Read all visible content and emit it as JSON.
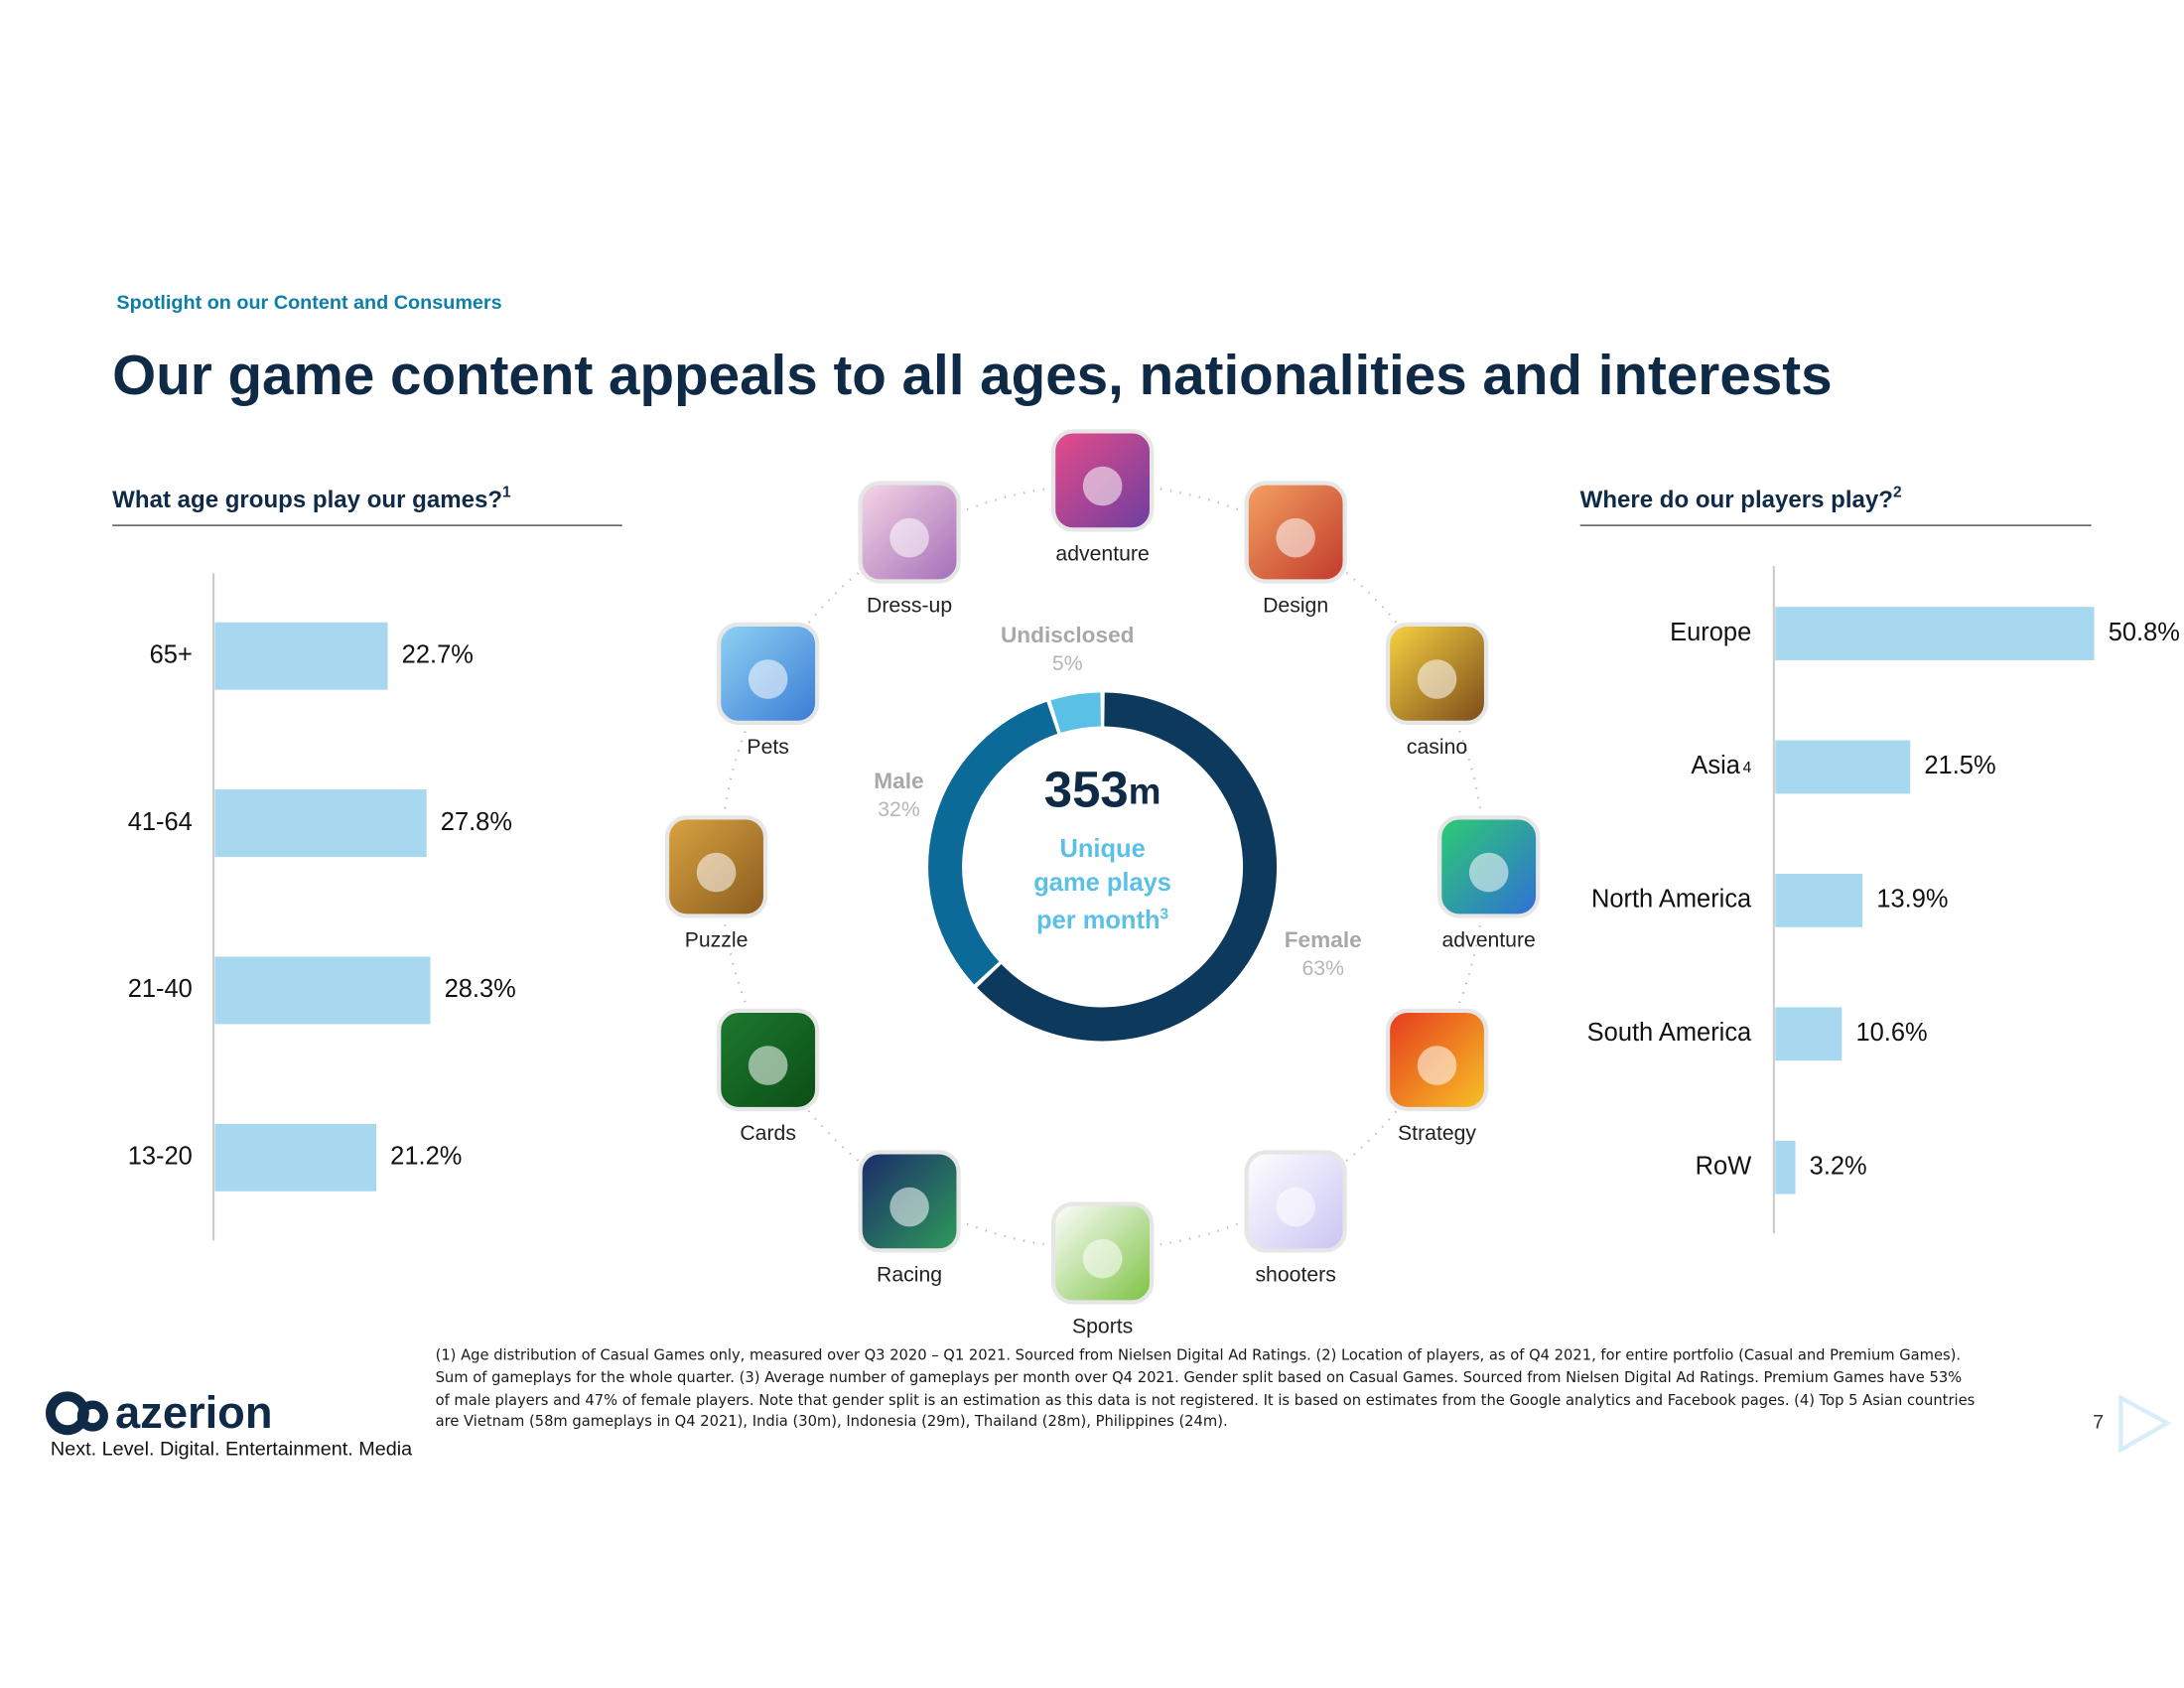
{
  "header": {
    "kicker": "Spotlight on our Content and Consumers",
    "title": "Our game content appeals to all ages, nationalities and interests"
  },
  "chart_data": [
    {
      "type": "bar",
      "orientation": "horizontal",
      "title": "What age groups play our games?",
      "title_note": "1",
      "categories": [
        "65+",
        "41-64",
        "21-40",
        "13-20"
      ],
      "values": [
        22.7,
        27.8,
        28.3,
        21.2
      ],
      "value_labels": [
        "22.7%",
        "27.8%",
        "28.3%",
        "21.2%"
      ],
      "color": "#a8d8ef"
    },
    {
      "type": "pie",
      "donut": true,
      "categories": [
        "Undisclosed",
        "Male",
        "Female"
      ],
      "values": [
        5,
        32,
        63
      ],
      "value_labels": [
        "5%",
        "32%",
        "63%"
      ],
      "colors": [
        "#5bc0e6",
        "#0b6a98",
        "#0d3a5c"
      ],
      "center_value": "353",
      "center_unit": "m",
      "center_label": "Unique game plays per month",
      "center_note": "3"
    },
    {
      "type": "bar",
      "orientation": "horizontal",
      "title": "Where do our players play?",
      "title_note": "2",
      "categories": [
        "Europe",
        "Asia",
        "North America",
        "South America",
        "RoW"
      ],
      "category_notes": {
        "1": "4"
      },
      "values": [
        50.8,
        21.5,
        13.9,
        10.6,
        3.2
      ],
      "value_labels": [
        "50.8%",
        "21.5%",
        "13.9%",
        "10.6%",
        "3.2%"
      ],
      "color": "#a8d8ef"
    }
  ],
  "games": [
    "adventure",
    "Design",
    "casino",
    "adventure",
    "Strategy",
    "shooters",
    "Sports",
    "Racing",
    "Cards",
    "Puzzle",
    "Pets",
    "Dress-up"
  ],
  "footnote": "(1) Age distribution of Casual Games only, measured over Q3 2020 – Q1 2021. Sourced from Nielsen Digital Ad Ratings. (2) Location of players, as of Q4 2021, for entire portfolio (Casual and Premium Games). Sum of gameplays for the whole quarter. (3) Average number of gameplays per month over Q4 2021. Gender split based on Casual Games. Sourced from Nielsen Digital Ad Ratings. Premium Games have 53% of male players and 47% of female players. Note that gender split is an estimation as this data is not registered. It is based on estimates from the Google analytics and Facebook pages. (4) Top 5 Asian countries are Vietnam (58m gameplays in Q4 2021), India (30m), Indonesia (29m), Thailand (28m), Philippines (24m).",
  "logo": "azerion",
  "tagline": "Next. Level. Digital. Entertainment. Media",
  "page_number": "7"
}
